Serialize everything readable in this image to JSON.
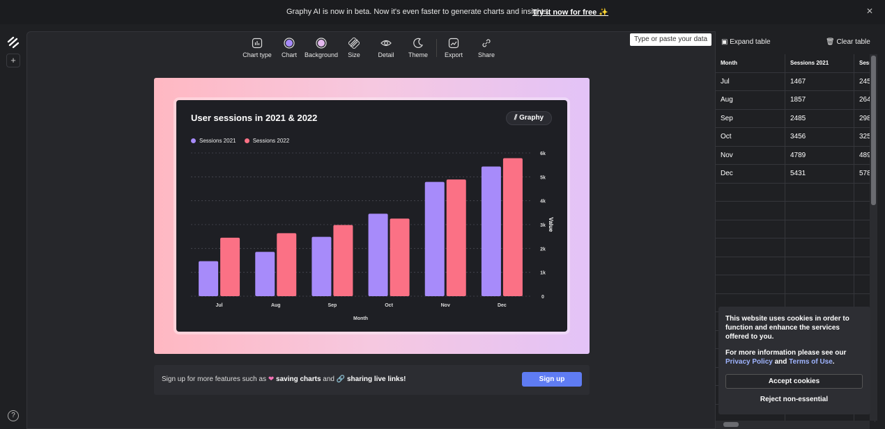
{
  "banner": {
    "message": "Graphy AI is now in beta. Now it's even faster to generate charts and insights.",
    "cta": "Try it now for free ✨",
    "close_icon": "close-icon"
  },
  "toolbar": {
    "items": [
      {
        "label": "Chart type",
        "icon": "chart-type-icon"
      },
      {
        "label": "Chart",
        "icon": "chart-color-icon"
      },
      {
        "label": "Background",
        "icon": "background-icon"
      },
      {
        "label": "Size",
        "icon": "size-icon"
      },
      {
        "label": "Detail",
        "icon": "detail-icon"
      },
      {
        "label": "Theme",
        "icon": "theme-icon"
      },
      {
        "label": "Export",
        "icon": "export-icon"
      },
      {
        "label": "Share",
        "icon": "share-icon"
      }
    ]
  },
  "chart_card": {
    "logo": "Graphy",
    "colors": {
      "s2021": "#a78bfa",
      "s2022": "#fb7185"
    }
  },
  "chart_data": {
    "type": "bar",
    "title": "User sessions in 2021 & 2022",
    "categories": [
      "Jul",
      "Aug",
      "Sep",
      "Oct",
      "Nov",
      "Dec"
    ],
    "series": [
      {
        "name": "Sessions 2021",
        "values": [
          1467,
          1857,
          2485,
          3456,
          4789,
          5431
        ]
      },
      {
        "name": "Sessions 2022",
        "values": [
          2450,
          2640,
          2980,
          3250,
          4890,
          5780
        ]
      }
    ],
    "xlabel": "Month",
    "ylabel": "Value",
    "ylim": [
      0,
      6000
    ],
    "yticks": [
      "0",
      "1k",
      "2k",
      "3k",
      "4k",
      "5k",
      "6k"
    ],
    "legend": "top-left"
  },
  "signup": {
    "text_prefix": "Sign up for more features such as",
    "feature1": "saving charts",
    "and": "and",
    "feature2": "sharing live links!",
    "button": "Sign up"
  },
  "tooltip": "Type or paste your data",
  "table": {
    "expand_label": "Expand table",
    "clear_label": "Clear table",
    "headers": [
      "Month",
      "Sessions 2021",
      "Sess"
    ],
    "rows": [
      [
        "Jul",
        "1467",
        "245"
      ],
      [
        "Aug",
        "1857",
        "264"
      ],
      [
        "Sep",
        "2485",
        "298"
      ],
      [
        "Oct",
        "3456",
        "325"
      ],
      [
        "Nov",
        "4789",
        "489"
      ],
      [
        "Dec",
        "5431",
        "578"
      ]
    ]
  },
  "cookie": {
    "para1": "This website uses cookies in order to function and enhance the services offered to you.",
    "para2_prefix": "For more information please see our",
    "privacy": "Privacy Policy",
    "and": "and",
    "terms": "Terms of Use",
    "period": ".",
    "accept": "Accept cookies",
    "reject": "Reject non-essential"
  },
  "help": "?"
}
